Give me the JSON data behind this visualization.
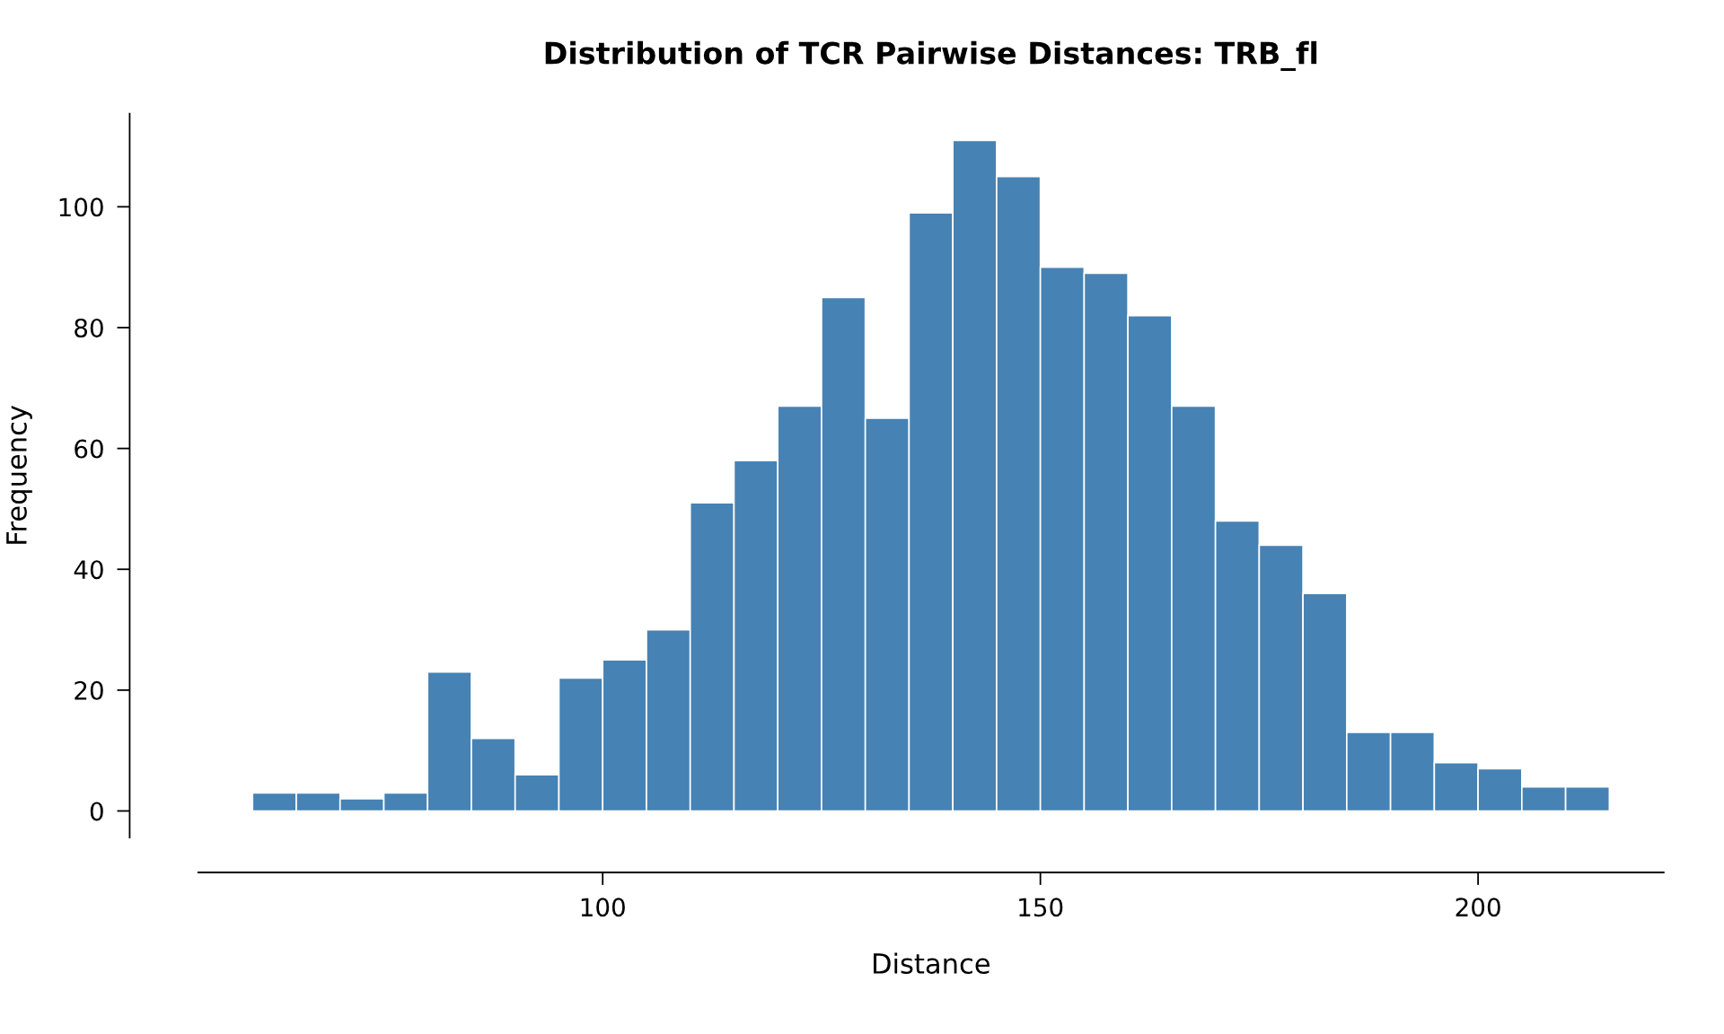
{
  "chart_data": {
    "type": "histogram",
    "title": "Distribution of TCR Pairwise Distances: TRB_fl",
    "xlabel": "Distance",
    "ylabel": "Frequency",
    "bins": [
      60,
      65,
      70,
      75,
      80,
      85,
      90,
      95,
      100,
      105,
      110,
      115,
      120,
      125,
      130,
      135,
      140,
      145,
      150,
      155,
      160,
      165,
      170,
      175,
      180,
      185,
      190,
      195,
      200,
      205,
      210,
      215
    ],
    "values": [
      3,
      3,
      2,
      3,
      23,
      12,
      6,
      22,
      25,
      30,
      51,
      58,
      67,
      85,
      65,
      99,
      111,
      105,
      90,
      89,
      82,
      67,
      48,
      44,
      36,
      13,
      13,
      8,
      7,
      4,
      4
    ],
    "color": "#4682b4",
    "xlim": [
      53.8,
      221.2
    ],
    "ylim": [
      -4.4,
      115.4
    ],
    "xticks": [
      100,
      150,
      200
    ],
    "yticks": [
      0,
      20,
      40,
      60,
      80,
      100
    ],
    "grid": false
  }
}
